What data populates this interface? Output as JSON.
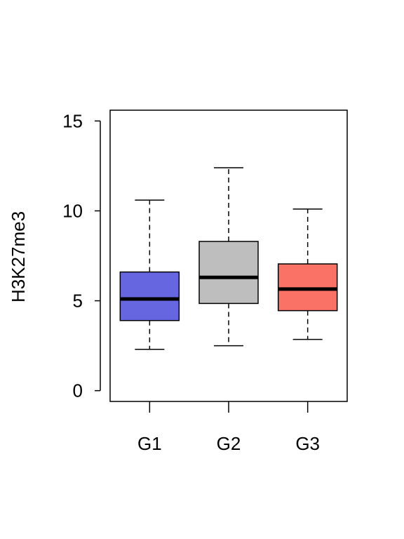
{
  "chart_data": {
    "type": "boxplot",
    "title": "",
    "xlabel": "",
    "ylabel": "H3K27me3",
    "ylim": [
      -0.6,
      15.6
    ],
    "yticks": [
      0,
      5,
      10,
      15
    ],
    "ytick_labels": [
      "0",
      "5",
      "10",
      "15"
    ],
    "categories": [
      "G1",
      "G2",
      "G3"
    ],
    "grid": false,
    "legend": "none",
    "boxes": [
      {
        "category": "G1",
        "whisker_low": 2.3,
        "q1": 3.9,
        "median": 5.1,
        "q3": 6.6,
        "whisker_high": 10.6,
        "color": "#6666e0"
      },
      {
        "category": "G2",
        "whisker_low": 2.5,
        "q1": 4.85,
        "median": 6.3,
        "q3": 8.3,
        "whisker_high": 12.4,
        "color": "#bebebe"
      },
      {
        "category": "G3",
        "whisker_low": 2.85,
        "q1": 4.45,
        "median": 5.65,
        "q3": 7.05,
        "whisker_high": 10.1,
        "color": "#fa7165"
      }
    ]
  }
}
